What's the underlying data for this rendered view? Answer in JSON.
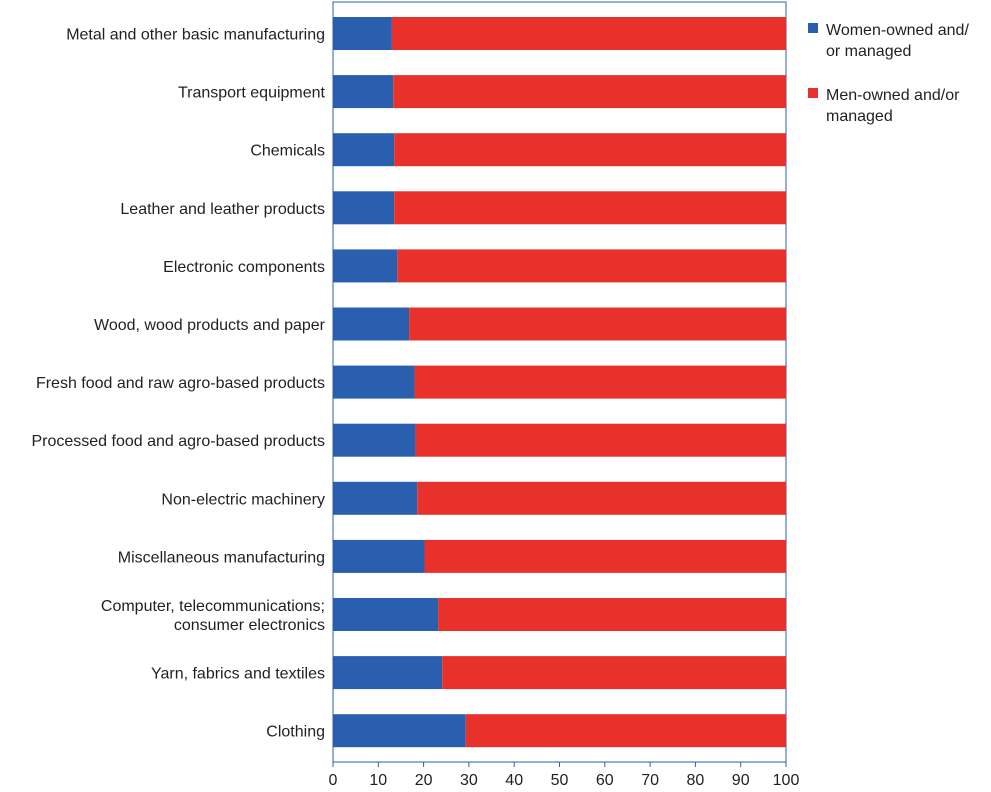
{
  "chart_data": {
    "type": "bar",
    "orientation": "horizontal",
    "stacked": true,
    "title": "",
    "xlabel": "",
    "ylabel": "",
    "xlim": [
      0,
      100
    ],
    "xticks": [
      "0",
      "10",
      "20",
      "30",
      "40",
      "50",
      "60",
      "70",
      "80",
      "90",
      "100"
    ],
    "grid": false,
    "legend_position": "top-right",
    "categories": [
      [
        "Metal and other basic manufacturing"
      ],
      [
        "Transport equipment"
      ],
      [
        "Chemicals"
      ],
      [
        "Leather and leather products"
      ],
      [
        "Electronic components"
      ],
      [
        "Wood, wood products and paper"
      ],
      [
        "Fresh food and raw agro-based products"
      ],
      [
        "Processed food and agro-based products"
      ],
      [
        "Non-electric machinery"
      ],
      [
        "Miscellaneous manufacturing"
      ],
      [
        "Computer, telecommunications;",
        "consumer electronics"
      ],
      [
        "Yarn, fabrics and textiles"
      ],
      [
        "Clothing"
      ]
    ],
    "series": [
      {
        "name": [
          "Women-owned and/",
          "or managed"
        ],
        "color": "#2a5fb0",
        "values": [
          13,
          13.3,
          13.5,
          13.5,
          14.2,
          16.8,
          18,
          18.2,
          18.6,
          20.2,
          23.2,
          24.1,
          29.3
        ]
      },
      {
        "name": [
          "Men-owned and/or",
          "managed"
        ],
        "color": "#e8312a",
        "values": [
          87,
          86.7,
          86.5,
          86.5,
          85.8,
          83.2,
          82,
          81.8,
          81.4,
          79.8,
          76.8,
          75.9,
          70.7
        ]
      }
    ],
    "frame_color": "#2a5fb0"
  }
}
